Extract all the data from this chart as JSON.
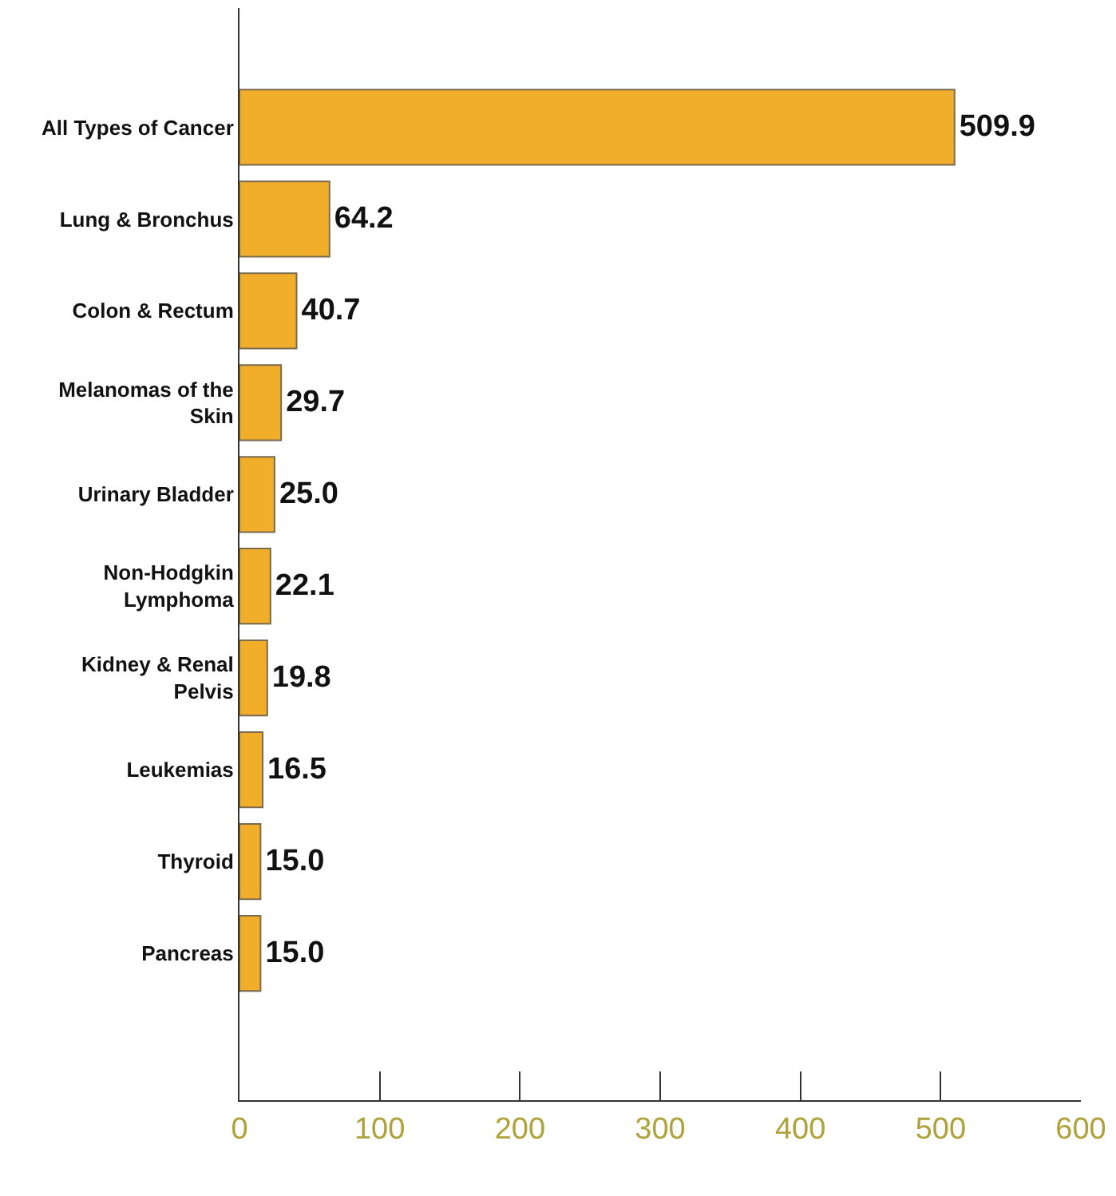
{
  "chart_data": {
    "type": "bar",
    "orientation": "horizontal",
    "categories": [
      "All Types of Cancer",
      "Lung & Bronchus",
      "Colon & Rectum",
      "Melanomas of the Skin",
      "Urinary Bladder",
      "Non-Hodgkin Lymphoma",
      "Kidney & Renal Pelvis",
      "Leukemias",
      "Thyroid",
      "Pancreas"
    ],
    "values": [
      509.9,
      64.2,
      40.7,
      29.7,
      25.0,
      22.1,
      19.8,
      16.5,
      15.0,
      15.0
    ],
    "value_labels": [
      "509.9",
      "64.2",
      "40.7",
      "29.7",
      "25.0",
      "22.1",
      "19.8",
      "16.5",
      "15.0",
      "15.0"
    ],
    "color": "#f0ae2a",
    "xlim": [
      0,
      600
    ],
    "xticks": [
      0,
      100,
      200,
      300,
      400,
      500,
      600
    ]
  }
}
